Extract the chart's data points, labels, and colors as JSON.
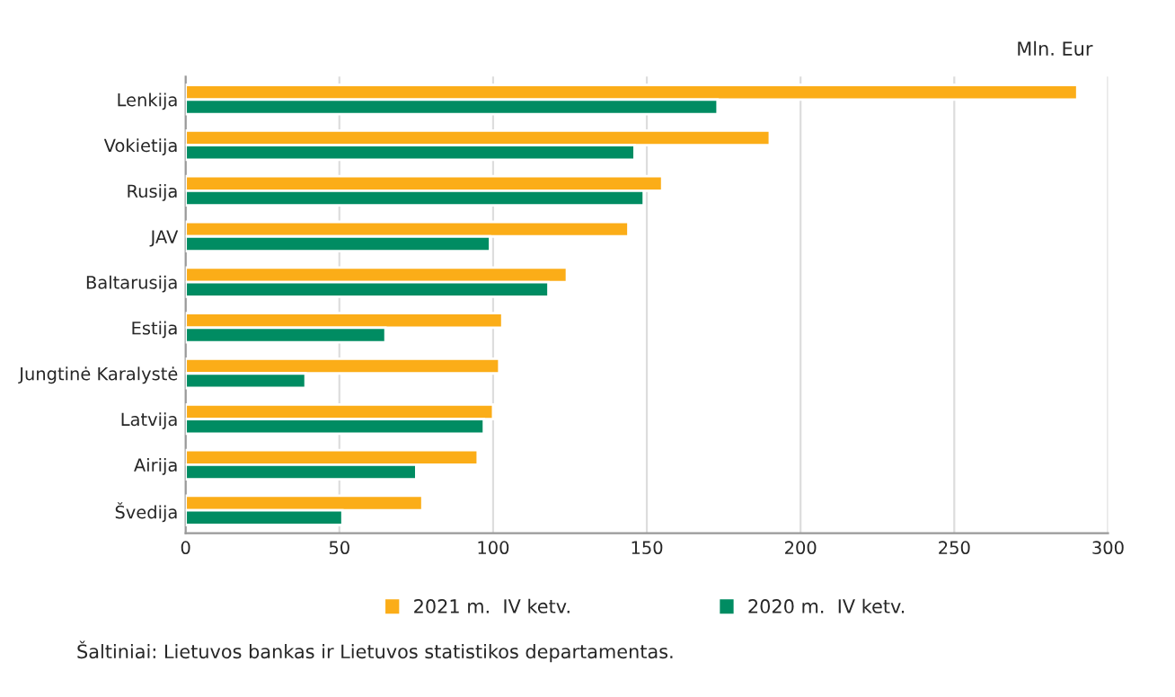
{
  "chart_data": {
    "type": "bar",
    "orientation": "horizontal",
    "xlabel": "Mln. Eur",
    "categories": [
      "Lenkija",
      "Vokietija",
      "Rusija",
      "JAV",
      "Baltarusija",
      "Estija",
      "Jungtinė Karalystė",
      "Latvija",
      "Airija",
      "Švedija"
    ],
    "series": [
      {
        "name": "2021 m.  IV ketv.",
        "color": "#fbad18",
        "values": [
          290,
          190,
          155,
          144,
          124,
          103,
          102,
          100,
          95,
          77
        ]
      },
      {
        "name": "2020 m.  IV ketv.",
        "color": "#008c62",
        "values": [
          173,
          146,
          149,
          99,
          118,
          65,
          39,
          97,
          75,
          51
        ]
      }
    ],
    "xlim": [
      0,
      300
    ],
    "xticks": [
      0,
      50,
      100,
      150,
      200,
      250,
      300
    ],
    "grid": "x",
    "legend": "bottom",
    "annotations": [
      "Šaltiniai: Lietuvos bankas ir Lietuvos statistikos departamentas."
    ]
  }
}
